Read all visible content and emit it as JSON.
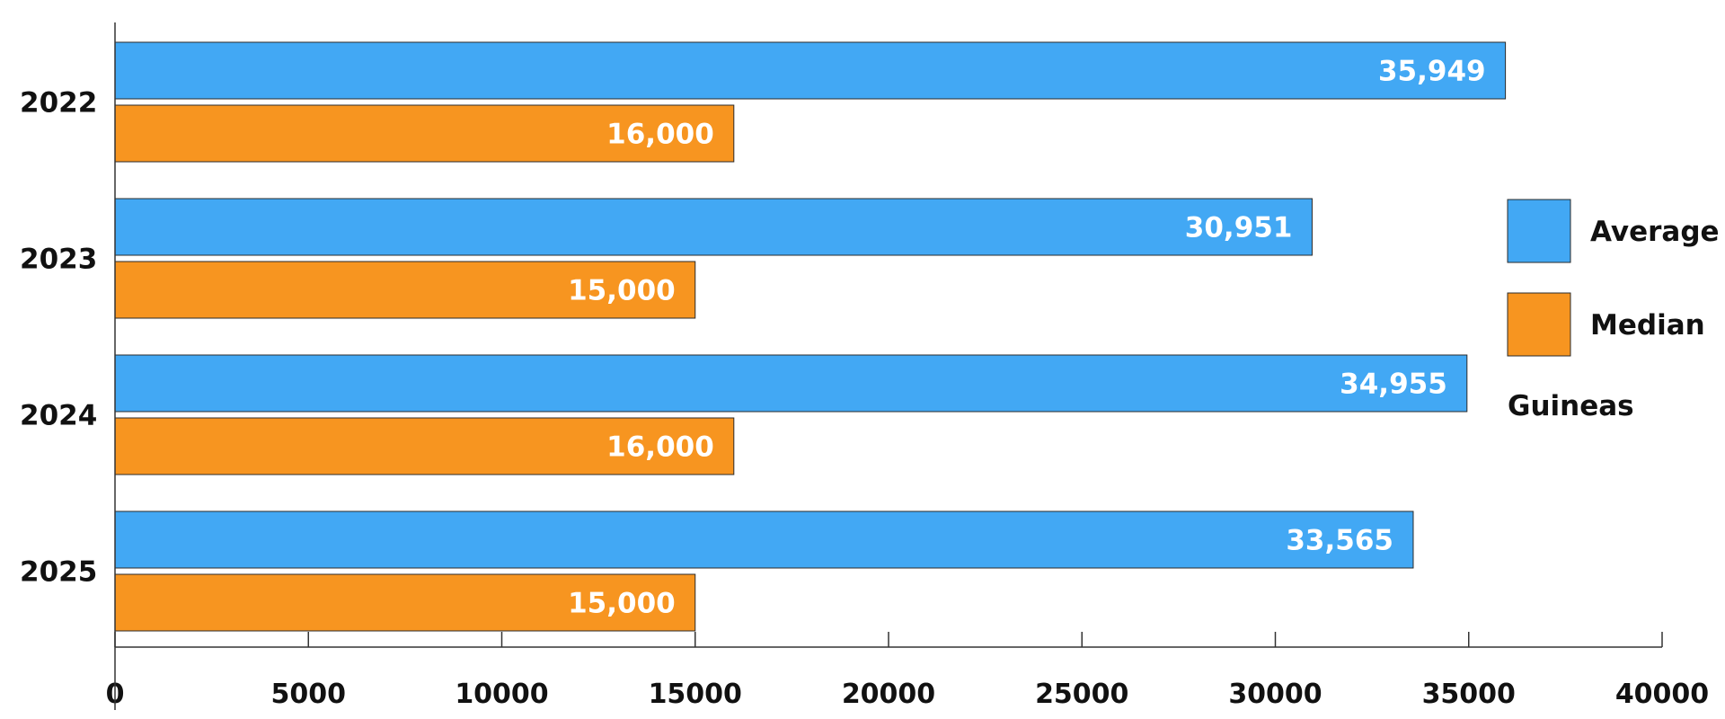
{
  "chart_data": {
    "type": "bar",
    "orientation": "horizontal",
    "categories": [
      "2022",
      "2023",
      "2024",
      "2025"
    ],
    "series": [
      {
        "name": "Average",
        "color": "#42A8F4",
        "values": [
          35949,
          30951,
          34955,
          33565
        ],
        "labels": [
          "35,949",
          "30,951",
          "34,955",
          "33,565"
        ]
      },
      {
        "name": "Median",
        "color": "#F79520",
        "values": [
          16000,
          15000,
          16000,
          15000
        ],
        "labels": [
          "16,000",
          "15,000",
          "16,000",
          "15,000"
        ]
      }
    ],
    "xlim": [
      0,
      40000
    ],
    "xticks": [
      0,
      5000,
      10000,
      15000,
      20000,
      25000,
      30000,
      35000,
      40000
    ],
    "xtick_labels": [
      "0",
      "5000",
      "10000",
      "15000",
      "20000",
      "25000",
      "30000",
      "35000",
      "40000"
    ],
    "unit_note": "Guineas",
    "legend_position": "right",
    "grid": false
  },
  "colors": {
    "axis": "#333333",
    "bar_stroke": "#2b2b2b"
  }
}
